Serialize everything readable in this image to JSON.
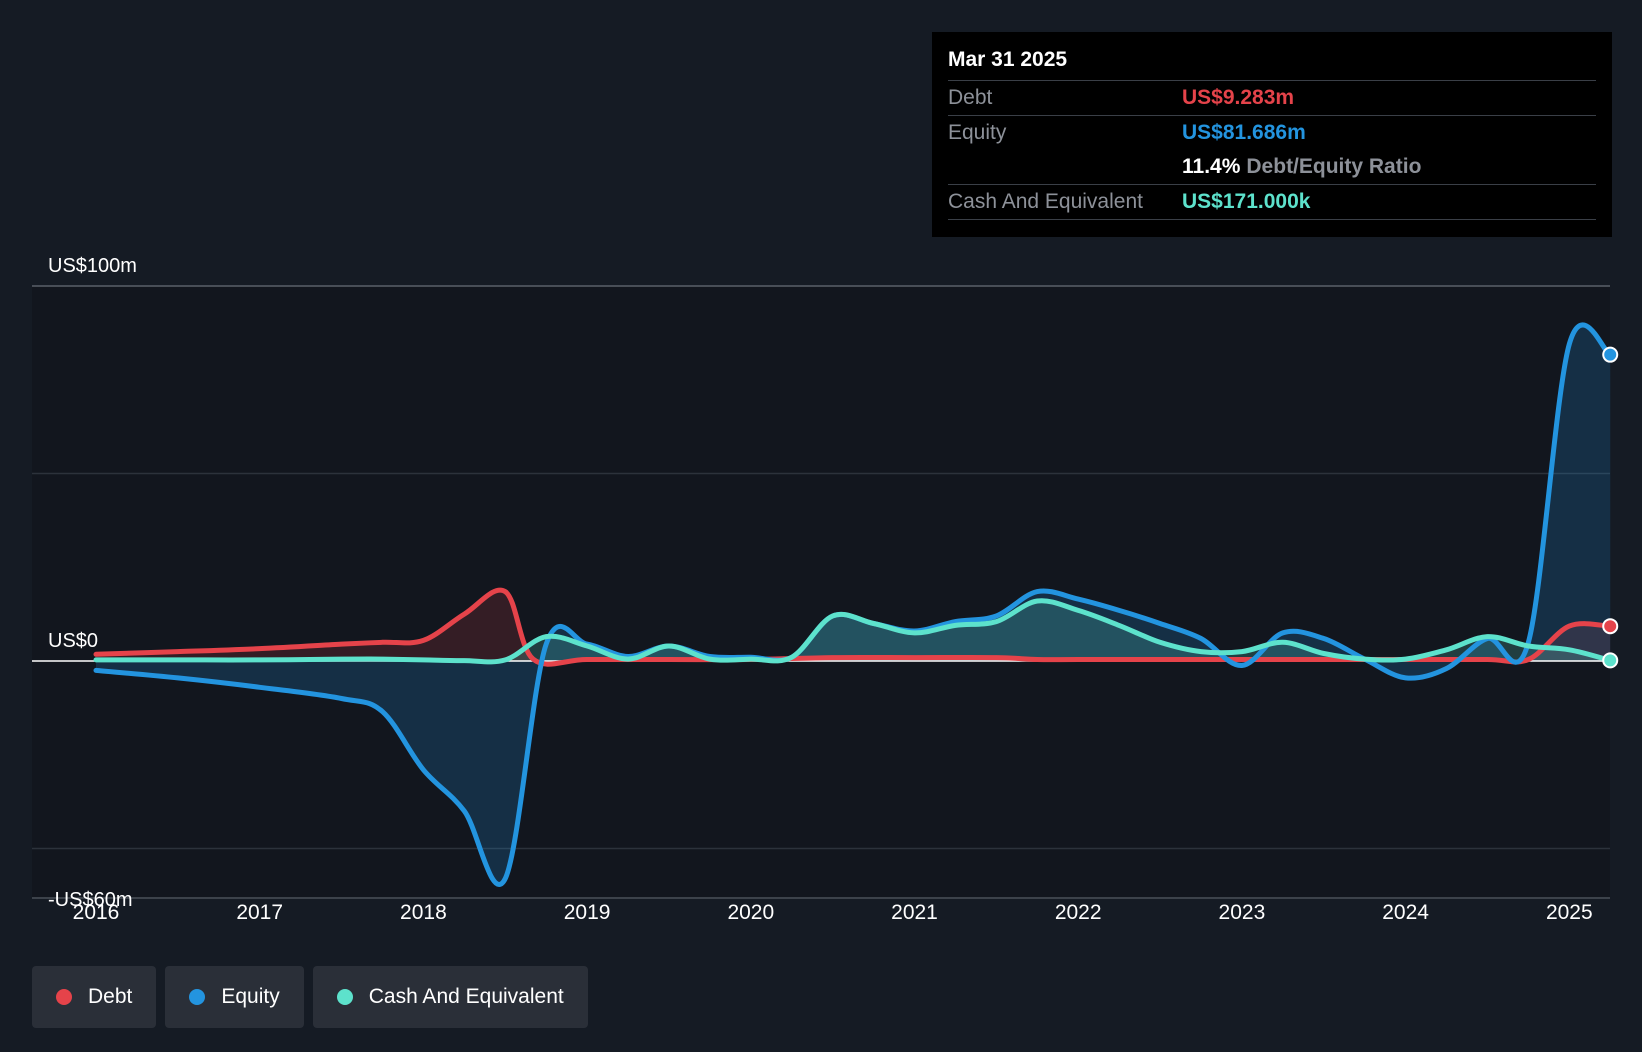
{
  "tooltip": {
    "date": "Mar 31 2025",
    "debt_label": "Debt",
    "debt_value": "US$9.283m",
    "equity_label": "Equity",
    "equity_value": "US$81.686m",
    "ratio_value": "11.4%",
    "ratio_label": "Debt/Equity Ratio",
    "cash_label": "Cash And Equivalent",
    "cash_value": "US$171.000k"
  },
  "legend": {
    "debt": "Debt",
    "equity": "Equity",
    "cash": "Cash And Equivalent"
  },
  "colors": {
    "debt": "#e5434a",
    "equity": "#2394df",
    "cash": "#5de2cc",
    "background": "#151b24"
  },
  "chart_data": {
    "type": "area",
    "ylim": [
      -60,
      100
    ],
    "y_tick_labels": [
      {
        "value": 100,
        "label": "US$100m"
      },
      {
        "value": 0,
        "label": "US$0"
      },
      {
        "value": -60,
        "label": "-US$60m"
      }
    ],
    "gridlines": [
      100,
      50,
      -50
    ],
    "xlim": [
      2015.62,
      2025.25
    ],
    "x_ticks": [
      {
        "value": 2016,
        "label": "2016"
      },
      {
        "value": 2017,
        "label": "2017"
      },
      {
        "value": 2018,
        "label": "2018"
      },
      {
        "value": 2019,
        "label": "2019"
      },
      {
        "value": 2020,
        "label": "2020"
      },
      {
        "value": 2021,
        "label": "2021"
      },
      {
        "value": 2022,
        "label": "2022"
      },
      {
        "value": 2023,
        "label": "2023"
      },
      {
        "value": 2024,
        "label": "2024"
      },
      {
        "value": 2025,
        "label": "2025"
      }
    ],
    "series": [
      {
        "name": "Debt",
        "points": [
          [
            2016.0,
            1.8
          ],
          [
            2016.5,
            2.5
          ],
          [
            2017.0,
            3.3
          ],
          [
            2017.5,
            4.5
          ],
          [
            2017.75,
            5.0
          ],
          [
            2018.0,
            5.5
          ],
          [
            2018.25,
            12.5
          ],
          [
            2018.5,
            18.5
          ],
          [
            2018.67,
            0.5
          ],
          [
            2019.0,
            0.4
          ],
          [
            2019.5,
            0.4
          ],
          [
            2020.0,
            0.4
          ],
          [
            2020.5,
            0.9
          ],
          [
            2021.0,
            0.9
          ],
          [
            2021.5,
            0.9
          ],
          [
            2021.75,
            0.4
          ],
          [
            2022.0,
            0.4
          ],
          [
            2022.5,
            0.4
          ],
          [
            2022.75,
            0.4
          ],
          [
            2023.0,
            0.4
          ],
          [
            2023.5,
            0.4
          ],
          [
            2024.0,
            0.4
          ],
          [
            2024.5,
            0.4
          ],
          [
            2024.75,
            0.4
          ],
          [
            2025.0,
            9.3
          ],
          [
            2025.25,
            9.283
          ]
        ]
      },
      {
        "name": "Equity",
        "points": [
          [
            2016.0,
            -2.5
          ],
          [
            2016.5,
            -4.5
          ],
          [
            2017.0,
            -7.0
          ],
          [
            2017.5,
            -10.0
          ],
          [
            2017.75,
            -13.5
          ],
          [
            2018.0,
            -29.0
          ],
          [
            2018.25,
            -40.0
          ],
          [
            2018.5,
            -58.0
          ],
          [
            2018.75,
            4.5
          ],
          [
            2019.0,
            4.5
          ],
          [
            2019.25,
            1.2
          ],
          [
            2019.5,
            4.0
          ],
          [
            2019.75,
            1.2
          ],
          [
            2020.0,
            1.0
          ],
          [
            2020.25,
            1.0
          ],
          [
            2020.5,
            12.0
          ],
          [
            2020.75,
            10.0
          ],
          [
            2021.0,
            8.0
          ],
          [
            2021.25,
            10.5
          ],
          [
            2021.5,
            12.0
          ],
          [
            2021.75,
            18.5
          ],
          [
            2022.0,
            16.5
          ],
          [
            2022.25,
            13.5
          ],
          [
            2022.5,
            10.0
          ],
          [
            2022.75,
            6.0
          ],
          [
            2023.0,
            -1.2
          ],
          [
            2023.25,
            7.5
          ],
          [
            2023.5,
            6.0
          ],
          [
            2023.75,
            0.5
          ],
          [
            2024.0,
            -4.5
          ],
          [
            2024.25,
            -2.0
          ],
          [
            2024.5,
            6.0
          ],
          [
            2024.75,
            5.0
          ],
          [
            2025.0,
            84.5
          ],
          [
            2025.25,
            81.686
          ]
        ]
      },
      {
        "name": "Cash And Equivalent",
        "points": [
          [
            2016.0,
            0.3
          ],
          [
            2016.5,
            0.3
          ],
          [
            2017.0,
            0.3
          ],
          [
            2017.5,
            0.5
          ],
          [
            2017.75,
            0.5
          ],
          [
            2018.0,
            0.3
          ],
          [
            2018.25,
            0.1
          ],
          [
            2018.5,
            0.3
          ],
          [
            2018.75,
            6.5
          ],
          [
            2019.0,
            4.0
          ],
          [
            2019.25,
            0.5
          ],
          [
            2019.5,
            4.0
          ],
          [
            2019.75,
            0.5
          ],
          [
            2020.0,
            0.5
          ],
          [
            2020.25,
            1.0
          ],
          [
            2020.5,
            12.0
          ],
          [
            2020.75,
            10.0
          ],
          [
            2021.0,
            7.5
          ],
          [
            2021.25,
            9.5
          ],
          [
            2021.5,
            10.5
          ],
          [
            2021.75,
            16.0
          ],
          [
            2022.0,
            13.5
          ],
          [
            2022.25,
            9.5
          ],
          [
            2022.5,
            5.0
          ],
          [
            2022.75,
            2.5
          ],
          [
            2023.0,
            2.5
          ],
          [
            2023.25,
            5.0
          ],
          [
            2023.5,
            2.0
          ],
          [
            2023.75,
            0.5
          ],
          [
            2024.0,
            0.5
          ],
          [
            2024.25,
            3.0
          ],
          [
            2024.5,
            6.5
          ],
          [
            2024.75,
            4.0
          ],
          [
            2025.0,
            3.0
          ],
          [
            2025.25,
            0.171
          ]
        ]
      }
    ]
  }
}
